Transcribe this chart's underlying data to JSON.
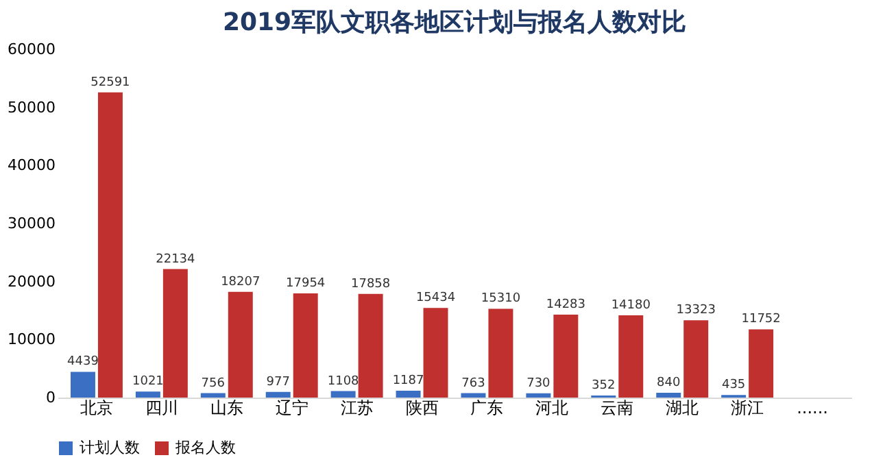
{
  "chart_data": {
    "type": "bar",
    "title": "2019军队文职各地区计划与报名人数对比",
    "categories": [
      "北京",
      "四川",
      "山东",
      "辽宁",
      "江苏",
      "陕西",
      "广东",
      "河北",
      "云南",
      "湖北",
      "浙江",
      "......"
    ],
    "series": [
      {
        "name": "计划人数",
        "color": "#3a6fc4",
        "values": [
          4439,
          1021,
          756,
          977,
          1108,
          1187,
          763,
          730,
          352,
          840,
          435,
          null
        ]
      },
      {
        "name": "报名人数",
        "color": "#c0302e",
        "values": [
          52591,
          22134,
          18207,
          17954,
          17858,
          15434,
          15310,
          14283,
          14180,
          13323,
          11752,
          null
        ]
      }
    ],
    "ylim": [
      0,
      60000
    ],
    "yticks": [
      0,
      10000,
      20000,
      30000,
      40000,
      50000,
      60000
    ],
    "grid": false,
    "legend": "bottom",
    "data_labels": true
  }
}
